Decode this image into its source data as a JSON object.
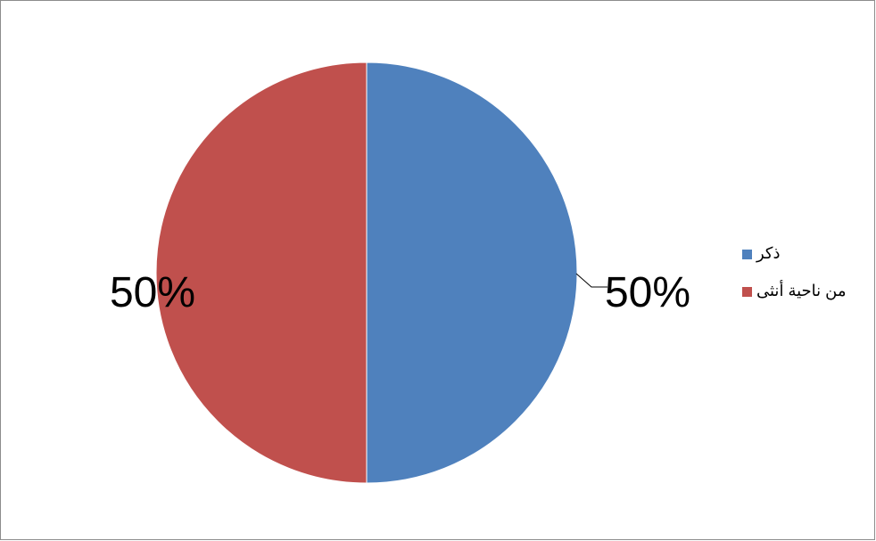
{
  "chart_data": {
    "type": "pie",
    "categories": [
      "ذكر",
      "من ناحية أنثى"
    ],
    "values": [
      50,
      50
    ],
    "data_labels": [
      "50%",
      "50%"
    ],
    "colors": [
      "#4F81BD",
      "#C0504D"
    ],
    "legend_position": "right",
    "start_angle_deg": 0,
    "direction": "clockwise"
  }
}
